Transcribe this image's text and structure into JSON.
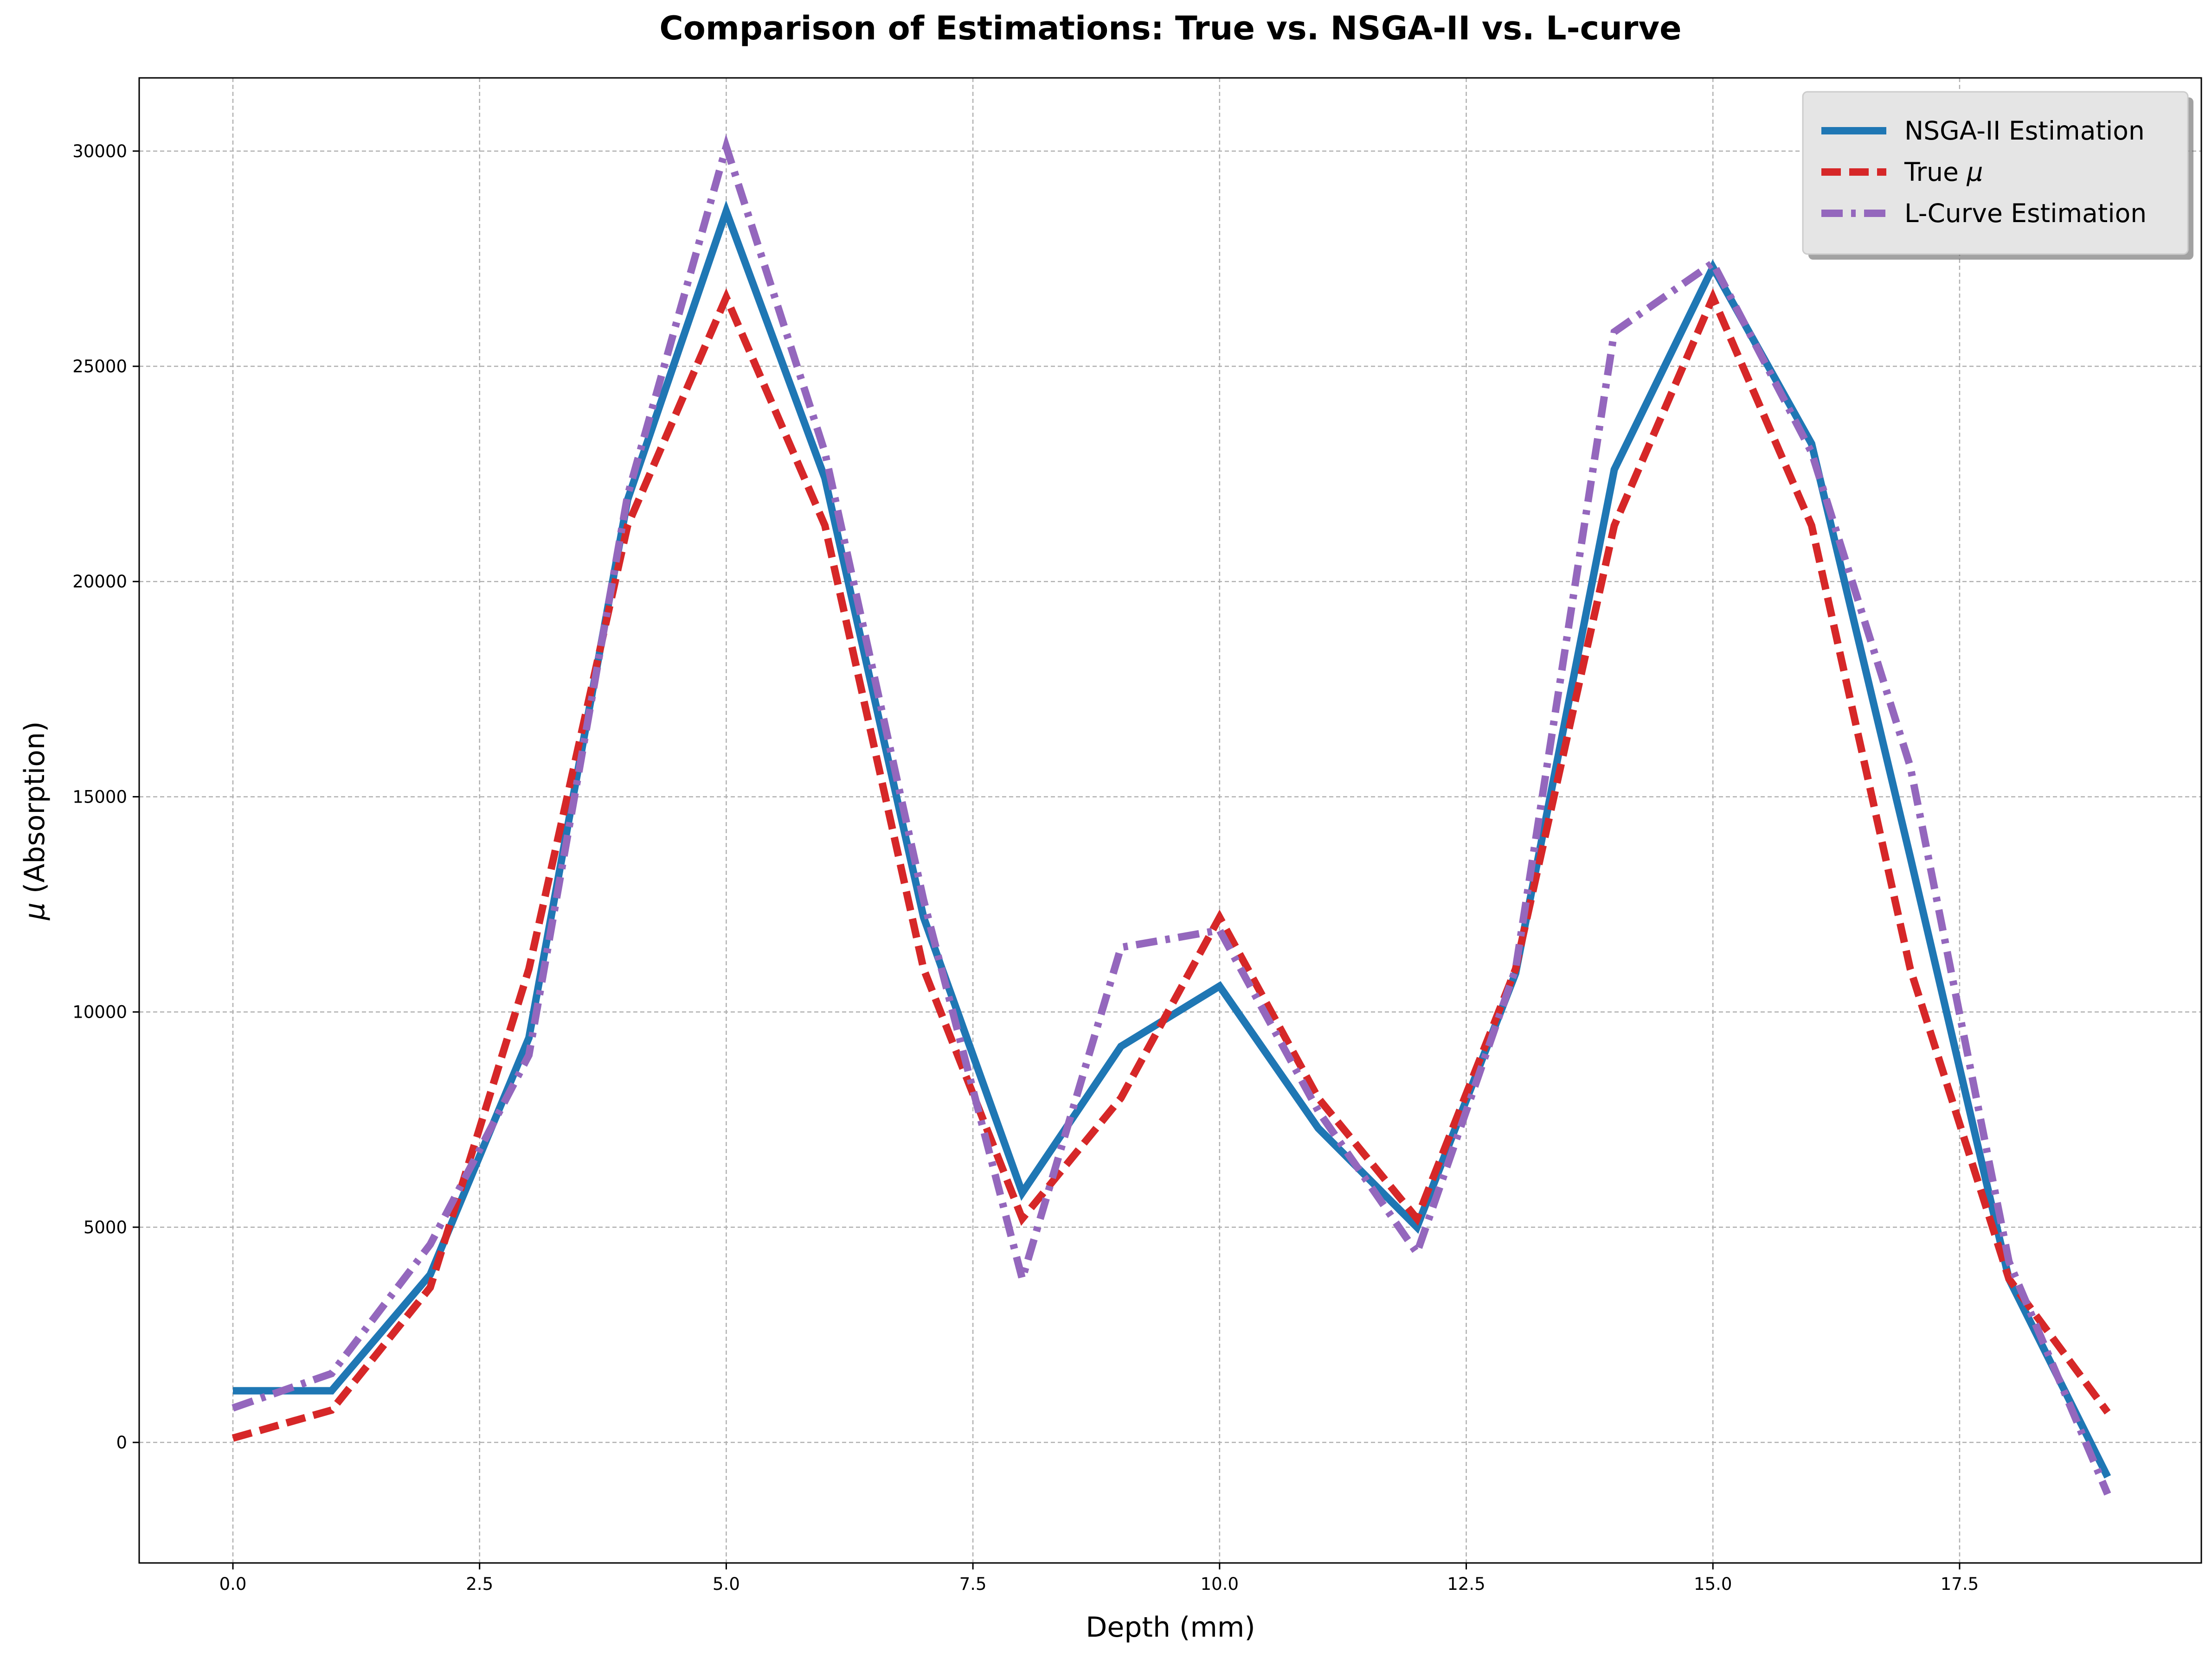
{
  "chart_data": {
    "type": "line",
    "title": "Comparison of Estimations: True vs. NSGA-II vs. L-curve",
    "xlabel": "Depth (mm)",
    "ylabel_symbol": "μ",
    "ylabel_text": " (Absorption)",
    "xlim": [
      -0.95,
      19.95
    ],
    "ylim": [
      -2800,
      31700
    ],
    "x_ticks": [
      0,
      2.5,
      5,
      7.5,
      10,
      12.5,
      15,
      17.5
    ],
    "x_tick_labels": [
      "0.0",
      "2.5",
      "5.0",
      "7.5",
      "10.0",
      "12.5",
      "15.0",
      "17.5"
    ],
    "y_ticks": [
      0,
      5000,
      10000,
      15000,
      20000,
      25000,
      30000
    ],
    "y_tick_labels": [
      "0",
      "5000",
      "10000",
      "15000",
      "20000",
      "25000",
      "30000"
    ],
    "grid": true,
    "legend_position": "top-right",
    "x": [
      0,
      1,
      2,
      3,
      4,
      5,
      6,
      7,
      8,
      9,
      10,
      11,
      12,
      13,
      14,
      15,
      16,
      17,
      18,
      19
    ],
    "series": [
      {
        "name": "NSGA-II Estimation",
        "legend_prefix": "NSGA-II Estimation",
        "legend_symbol": "",
        "color": "#1f77b4",
        "style": "solid",
        "values": [
          1200,
          1200,
          3900,
          9400,
          21900,
          28600,
          22400,
          12200,
          5800,
          9200,
          10600,
          7300,
          5000,
          10900,
          22600,
          27300,
          23200,
          13600,
          3800,
          -800
        ]
      },
      {
        "name": "True μ",
        "legend_prefix": "True ",
        "legend_symbol": "μ",
        "color": "#d62728",
        "style": "dashed",
        "values": [
          100,
          750,
          3600,
          11000,
          21300,
          26600,
          21300,
          11000,
          5200,
          8000,
          12200,
          8000,
          5200,
          11000,
          21300,
          26600,
          21300,
          11000,
          3800,
          700
        ]
      },
      {
        "name": "L-Curve Estimation",
        "legend_prefix": "L-Curve Estimation",
        "legend_symbol": "",
        "color": "#9467bd",
        "style": "dashdot",
        "values": [
          800,
          1600,
          4600,
          9000,
          22000,
          30100,
          23000,
          12600,
          3800,
          11500,
          11900,
          7700,
          4400,
          11000,
          25800,
          27400,
          23000,
          15700,
          4200,
          -1200
        ]
      }
    ]
  }
}
